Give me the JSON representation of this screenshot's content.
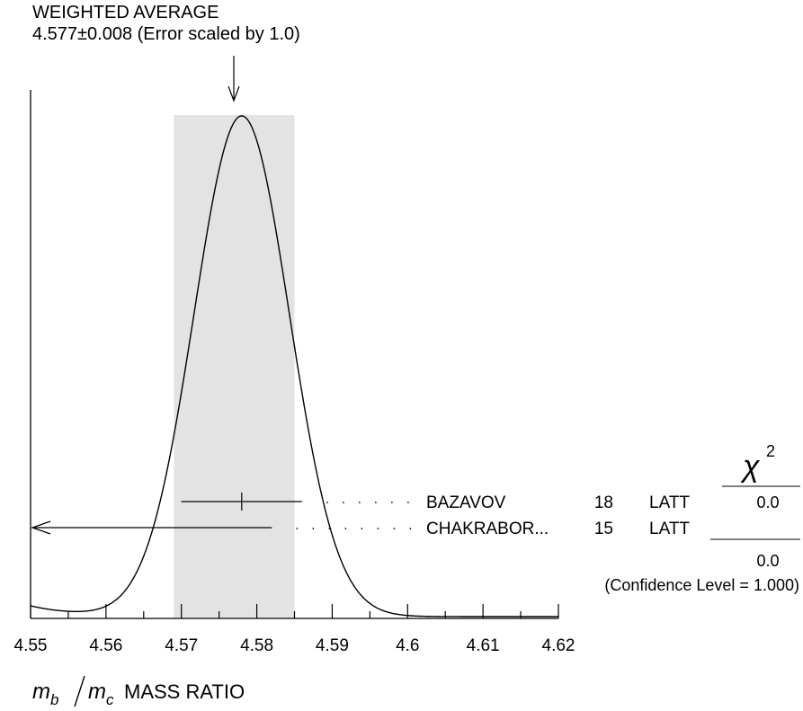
{
  "chart_data": {
    "type": "ideogram",
    "title": "WEIGHTED AVERAGE",
    "subtitle": "4.577±0.008 (Error scaled by 1.0)",
    "xlabel": {
      "numerator": "m",
      "numerator_sub": "b",
      "denominator": "m",
      "denominator_sub": "c",
      "suffix": "MASS RATIO"
    },
    "xlim": [
      4.55,
      4.62
    ],
    "x_ticks": [
      "4.55",
      "4.56",
      "4.57",
      "4.58",
      "4.59",
      "4.6",
      "4.61",
      "4.62"
    ],
    "weighted_average": {
      "value": 4.577,
      "error": 0.008
    },
    "band": [
      4.569,
      4.585
    ],
    "measurements": [
      {
        "name": "BAZAVOV",
        "year": "18",
        "tech": "LATT",
        "value": 4.578,
        "low": 4.57,
        "high": 4.586,
        "chi2": "0.0"
      },
      {
        "name": "CHAKRABOR...",
        "year": "15",
        "tech": "LATT",
        "value": null,
        "low": null,
        "high": 4.582,
        "arrow_left": true,
        "chi2": ""
      }
    ],
    "chi2_header": "χ",
    "chi2_sup": "2",
    "chi2_total": "0.0",
    "confidence": "(Confidence Level = 1.000)",
    "curve_peak_x": 4.578,
    "curve_sigma": 0.0063,
    "colors": {
      "band": "#e3e3e3",
      "ink": "#000000"
    }
  }
}
